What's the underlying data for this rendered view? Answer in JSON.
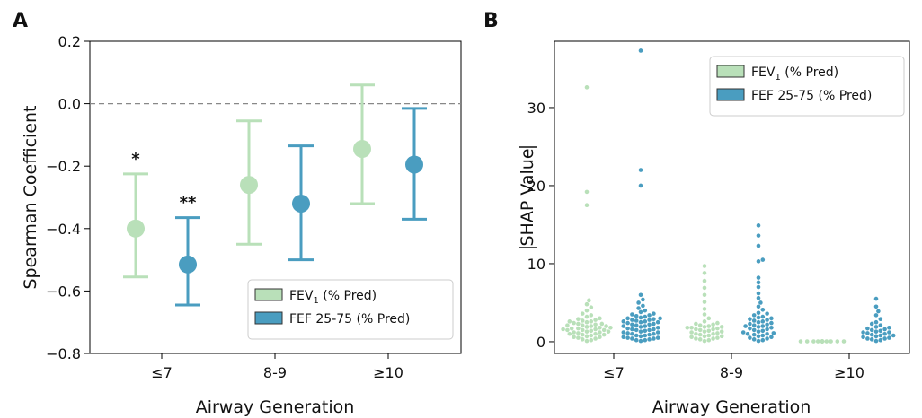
{
  "colors": {
    "fev1": "#b9e0b9",
    "fef": "#4a9dc0",
    "fev1_edge": "#6ca36c",
    "fef_edge": "#2a6f8f"
  },
  "chart_data": [
    {
      "panel": "A",
      "type": "errorbar",
      "xlabel": "Airway Generation",
      "ylabel": "Spearman Coefficient",
      "categories": [
        "≤7",
        "8-9",
        "≥10"
      ],
      "ylim": [
        -0.8,
        0.2
      ],
      "yticks": [
        "0.2",
        "0.0",
        "−0.2",
        "−0.4",
        "−0.6",
        "−0.8"
      ],
      "reference_line": 0.0,
      "legend_placement": "lower-right",
      "series": [
        {
          "name": "FEV1 (% Pred)",
          "name_main": "FEV",
          "name_sub": "1",
          "name_tail": " (% Pred)",
          "values": [
            -0.4,
            -0.26,
            -0.145
          ],
          "lower": [
            -0.555,
            -0.45,
            -0.32
          ],
          "upper": [
            -0.225,
            -0.055,
            0.06
          ],
          "significance": [
            "*",
            "",
            ""
          ]
        },
        {
          "name": "FEF 25-75 (% Pred)",
          "values": [
            -0.515,
            -0.32,
            -0.195
          ],
          "lower": [
            -0.645,
            -0.5,
            -0.37
          ],
          "upper": [
            -0.365,
            -0.135,
            -0.015
          ],
          "significance": [
            "**",
            "",
            ""
          ]
        }
      ]
    },
    {
      "panel": "B",
      "type": "swarm",
      "xlabel": "Airway Generation",
      "ylabel": "|SHAP Value|",
      "ylabel_text": "SHAP Value",
      "categories": [
        "≤7",
        "8-9",
        "≥10"
      ],
      "ylim": [
        -1.5,
        38.5
      ],
      "yticks": [
        "0",
        "10",
        "20",
        "30"
      ],
      "legend_placement": "upper-right",
      "series": [
        {
          "name": "FEV1 (% Pred)",
          "name_main": "FEV",
          "name_sub": "1",
          "name_tail": " (% Pred)",
          "values": [
            [
              32.6,
              19.2,
              17.5,
              5.3,
              4.8,
              4.4,
              4.0,
              3.6,
              3.4,
              3.2,
              3.0,
              2.8,
              2.7,
              2.6,
              2.5,
              2.4,
              2.3,
              2.2,
              2.1,
              2.0,
              2.0,
              1.9,
              1.8,
              1.8,
              1.7,
              1.6,
              1.6,
              1.5,
              1.5,
              1.4,
              1.3,
              1.3,
              1.2,
              1.1,
              1.0,
              1.0,
              0.9,
              0.8,
              0.7,
              0.6,
              0.5,
              0.4,
              0.3,
              0.2,
              0.1,
              2.9,
              2.6,
              2.3,
              2.1,
              1.9,
              1.7,
              1.5,
              1.2,
              0.9,
              0.6
            ],
            [
              9.7,
              8.8,
              7.8,
              6.9,
              6.0,
              5.1,
              4.2,
              3.5,
              3.0,
              2.6,
              2.4,
              2.2,
              2.1,
              2.0,
              1.9,
              1.8,
              1.7,
              1.6,
              1.5,
              1.4,
              1.3,
              1.2,
              1.1,
              1.0,
              0.9,
              0.8,
              0.7,
              0.6,
              0.5,
              0.4,
              0.3,
              0.2,
              0.1,
              1.9,
              1.6,
              1.3,
              1.0,
              0.7,
              0.4,
              2.3,
              1.8
            ],
            [
              0.05,
              0.05,
              0.05,
              0.05,
              0.05,
              0.05,
              0.05,
              0.05,
              0.05,
              0.05,
              0.05,
              0.05,
              0.05,
              0.05,
              0.05,
              0.05,
              0.05,
              0.05
            ]
          ]
        },
        {
          "name": "FEF 25-75 (% Pred)",
          "values": [
            [
              37.3,
              22.0,
              20.0,
              6.0,
              5.4,
              5.0,
              4.6,
              4.3,
              4.0,
              3.8,
              3.6,
              3.4,
              3.2,
              3.1,
              3.0,
              2.9,
              2.8,
              2.7,
              2.6,
              2.5,
              2.4,
              2.3,
              2.2,
              2.1,
              2.0,
              1.9,
              1.8,
              1.7,
              1.6,
              1.5,
              1.4,
              1.3,
              1.2,
              1.1,
              1.0,
              0.9,
              0.8,
              0.7,
              0.6,
              0.5,
              0.4,
              0.3,
              0.2,
              0.1,
              3.5,
              3.0,
              2.5,
              2.0,
              1.5,
              1.0,
              0.5,
              2.8,
              2.2,
              1.6,
              1.2,
              0.8,
              0.4,
              0.2,
              3.3,
              2.6
            ],
            [
              14.9,
              13.6,
              12.3,
              10.5,
              10.3,
              8.2,
              7.6,
              7.0,
              6.2,
              5.6,
              5.0,
              4.5,
              4.1,
              3.7,
              3.4,
              3.1,
              2.8,
              2.6,
              2.4,
              2.2,
              2.0,
              1.8,
              1.6,
              1.4,
              1.2,
              1.0,
              0.8,
              0.6,
              0.4,
              0.2,
              3.2,
              2.7,
              2.3,
              1.9,
              1.5,
              1.1,
              0.7,
              0.3,
              3.6,
              2.9,
              2.1,
              1.3,
              0.5,
              2.5,
              1.7,
              0.9,
              0.1,
              3.0,
              2.0,
              1.0
            ],
            [
              5.5,
              4.5,
              3.9,
              3.4,
              2.9,
              2.5,
              2.1,
              1.8,
              1.5,
              1.3,
              1.1,
              0.9,
              0.7,
              0.5,
              0.3,
              0.1,
              2.3,
              1.9,
              1.6,
              1.2,
              0.8,
              0.4,
              1.4,
              1.0,
              0.6,
              0.2,
              1.7,
              0.4,
              1.2,
              0.8
            ]
          ]
        }
      ]
    }
  ]
}
